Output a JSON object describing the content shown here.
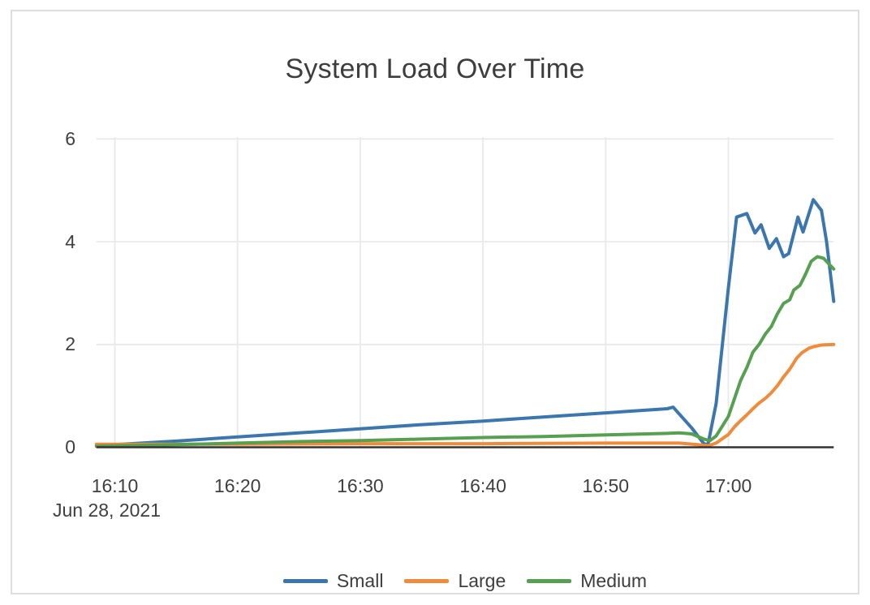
{
  "page": {
    "background_color": "#ffffff",
    "card_border_color": "#dedede"
  },
  "chart_data": {
    "type": "line",
    "title": "System Load Over Time",
    "grid": true,
    "legend_position": "bottom-center",
    "x_axis": {
      "kind": "time",
      "date_label": "Jun 28, 2021",
      "tick_labels": [
        "16:10",
        "16:20",
        "16:30",
        "16:40",
        "16:50",
        "17:00"
      ],
      "tick_times": [
        "16:10",
        "16:20",
        "16:30",
        "16:40",
        "16:50",
        "17:00"
      ],
      "range_times": [
        "16:08:30",
        "17:08:35"
      ]
    },
    "y_axis": {
      "tick_labels": [
        "0",
        "2",
        "4",
        "6"
      ],
      "tick_values": [
        0,
        2,
        4,
        6
      ],
      "range": [
        0,
        6
      ]
    },
    "colors": {
      "grid_line": "#e9e9e9",
      "axis_line": "#333333",
      "text": "#3f3f3f"
    },
    "series": [
      {
        "name": "Small",
        "color": "#3c76af",
        "points": [
          [
            "16:08:30",
            0.03
          ],
          [
            "16:10",
            0.05
          ],
          [
            "16:15",
            0.12
          ],
          [
            "16:20",
            0.2
          ],
          [
            "16:25",
            0.28
          ],
          [
            "16:30",
            0.36
          ],
          [
            "16:35",
            0.44
          ],
          [
            "16:40",
            0.51
          ],
          [
            "16:45",
            0.59
          ],
          [
            "16:50",
            0.67
          ],
          [
            "16:55",
            0.75
          ],
          [
            "16:55:30",
            0.78
          ],
          [
            "16:57",
            0.38
          ],
          [
            "16:58",
            0.07
          ],
          [
            "16:58:20",
            0.05
          ],
          [
            "16:59",
            0.85
          ],
          [
            "17:00",
            3.1
          ],
          [
            "17:00:40",
            4.48
          ],
          [
            "17:01:30",
            4.55
          ],
          [
            "17:02:10",
            4.17
          ],
          [
            "17:02:40",
            4.33
          ],
          [
            "17:03:20",
            3.87
          ],
          [
            "17:03:55",
            4.06
          ],
          [
            "17:04:30",
            3.71
          ],
          [
            "17:04:55",
            3.77
          ],
          [
            "17:05:40",
            4.48
          ],
          [
            "17:06:05",
            4.19
          ],
          [
            "17:06:55",
            4.82
          ],
          [
            "17:07:35",
            4.61
          ],
          [
            "17:08:00",
            4.0
          ],
          [
            "17:08:35",
            2.84
          ]
        ]
      },
      {
        "name": "Large",
        "color": "#f08b3b",
        "points": [
          [
            "16:08:30",
            0.06
          ],
          [
            "16:20",
            0.06
          ],
          [
            "16:30",
            0.07
          ],
          [
            "16:40",
            0.07
          ],
          [
            "16:50",
            0.08
          ],
          [
            "16:56",
            0.08
          ],
          [
            "16:57:30",
            0.05
          ],
          [
            "16:58:20",
            0.03
          ],
          [
            "16:59",
            0.08
          ],
          [
            "17:00",
            0.25
          ],
          [
            "17:00:30",
            0.4
          ],
          [
            "17:01",
            0.52
          ],
          [
            "17:01:30",
            0.63
          ],
          [
            "17:02",
            0.75
          ],
          [
            "17:02:30",
            0.86
          ],
          [
            "17:03",
            0.95
          ],
          [
            "17:03:30",
            1.06
          ],
          [
            "17:04",
            1.2
          ],
          [
            "17:04:30",
            1.37
          ],
          [
            "17:05",
            1.52
          ],
          [
            "17:05:35",
            1.74
          ],
          [
            "17:06",
            1.84
          ],
          [
            "17:06:35",
            1.93
          ],
          [
            "17:07",
            1.96
          ],
          [
            "17:07:35",
            1.99
          ],
          [
            "17:08:35",
            2.0
          ]
        ]
      },
      {
        "name": "Medium",
        "color": "#57a052",
        "points": [
          [
            "16:08:30",
            0.02
          ],
          [
            "16:15",
            0.05
          ],
          [
            "16:20",
            0.08
          ],
          [
            "16:25",
            0.11
          ],
          [
            "16:30",
            0.13
          ],
          [
            "16:35",
            0.16
          ],
          [
            "16:40",
            0.19
          ],
          [
            "16:45",
            0.21
          ],
          [
            "16:50",
            0.24
          ],
          [
            "16:55",
            0.27
          ],
          [
            "16:56",
            0.28
          ],
          [
            "16:57",
            0.26
          ],
          [
            "16:58",
            0.16
          ],
          [
            "16:58:30",
            0.13
          ],
          [
            "16:59",
            0.22
          ],
          [
            "17:00",
            0.6
          ],
          [
            "17:00:30",
            0.95
          ],
          [
            "17:01",
            1.3
          ],
          [
            "17:01:30",
            1.55
          ],
          [
            "17:02",
            1.85
          ],
          [
            "17:02:30",
            2.0
          ],
          [
            "17:03",
            2.2
          ],
          [
            "17:03:30",
            2.35
          ],
          [
            "17:04",
            2.6
          ],
          [
            "17:04:30",
            2.8
          ],
          [
            "17:05",
            2.87
          ],
          [
            "17:05:20",
            3.06
          ],
          [
            "17:05:50",
            3.15
          ],
          [
            "17:06:15",
            3.35
          ],
          [
            "17:06:45",
            3.62
          ],
          [
            "17:07:15",
            3.71
          ],
          [
            "17:07:45",
            3.68
          ],
          [
            "17:08:35",
            3.47
          ]
        ]
      }
    ]
  },
  "legend": {
    "items": [
      {
        "label": "Small"
      },
      {
        "label": "Large"
      },
      {
        "label": "Medium"
      }
    ]
  }
}
